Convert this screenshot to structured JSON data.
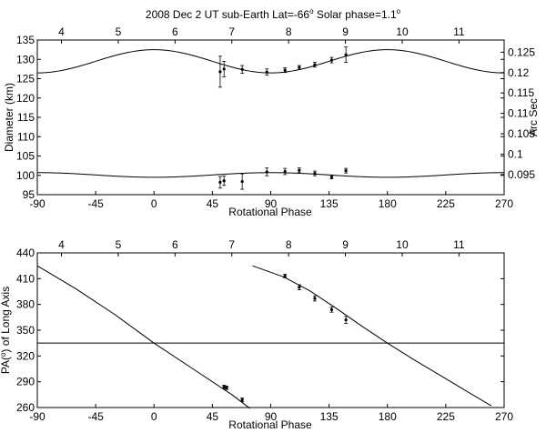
{
  "chart_data": [
    {
      "type": "scatter",
      "title": "2008 Dec 2 UT  sub-Earth Lat=-66",
      "title_sup1": "o",
      "title_rest": "  Solar phase=1.1",
      "title_sup2": "o",
      "xlabel": "Rotational Phase",
      "ylabel": "Diameter (km)",
      "y2label": "Arc Sec",
      "xlim": [
        -90,
        270
      ],
      "ylim": [
        95,
        135
      ],
      "xticks": [
        -90,
        -45,
        0,
        45,
        90,
        135,
        180,
        225,
        270
      ],
      "yticks": [
        95,
        100,
        105,
        110,
        115,
        120,
        125,
        130,
        135
      ],
      "y2ticks": [
        0.095,
        0.1,
        0.105,
        0.11,
        0.115,
        0.12,
        0.125
      ],
      "y2_scale_km_per_arcsec": 1054.8,
      "top_axis": {
        "label_values": [
          4,
          5,
          6,
          7,
          8,
          9,
          10,
          11
        ],
        "period_hours": 8.22,
        "zero_phase_hour": 5.63
      },
      "series": [
        {
          "model": "cosine",
          "mean": 129.5,
          "amplitude": 3.0,
          "period_deg": 180,
          "peak_deg": 0,
          "points": [
            {
              "x": 51,
              "y": 126.8,
              "err": 4.0
            },
            {
              "x": 54,
              "y": 127.5,
              "err": 2.0
            },
            {
              "x": 68,
              "y": 127.4,
              "err": 1.0
            },
            {
              "x": 87,
              "y": 126.7,
              "err": 0.8
            },
            {
              "x": 101,
              "y": 127.2,
              "err": 0.6
            },
            {
              "x": 112,
              "y": 127.9,
              "err": 0.5
            },
            {
              "x": 124,
              "y": 128.6,
              "err": 0.6
            },
            {
              "x": 137,
              "y": 129.8,
              "err": 0.7
            },
            {
              "x": 148,
              "y": 131.2,
              "err": 2.0
            }
          ]
        },
        {
          "model": "cosine",
          "mean": 100.1,
          "amplitude": 0.6,
          "period_deg": 180,
          "peak_deg": 90,
          "points": [
            {
              "x": 51,
              "y": 98.2,
              "err": 1.5
            },
            {
              "x": 54,
              "y": 98.6,
              "err": 1.2
            },
            {
              "x": 68,
              "y": 98.4,
              "err": 2.0
            },
            {
              "x": 87,
              "y": 100.9,
              "err": 1.0
            },
            {
              "x": 101,
              "y": 101.0,
              "err": 0.8
            },
            {
              "x": 112,
              "y": 101.3,
              "err": 0.6
            },
            {
              "x": 124,
              "y": 100.5,
              "err": 0.6
            },
            {
              "x": 137,
              "y": 99.6,
              "err": 0.5
            },
            {
              "x": 148,
              "y": 101.2,
              "err": 0.6
            }
          ]
        }
      ]
    },
    {
      "type": "scatter",
      "title": "",
      "xlabel": "Rotational Phase",
      "ylabel": "PA(",
      "ylabel_sup": "o",
      "ylabel_rest": ") of Long Axis",
      "xlim": [
        -90,
        270
      ],
      "ylim": [
        260,
        440
      ],
      "xticks": [
        -90,
        -45,
        0,
        45,
        90,
        135,
        180,
        225,
        270
      ],
      "yticks": [
        260,
        290,
        320,
        350,
        380,
        410,
        440
      ],
      "top_axis": {
        "label_values": [
          4,
          5,
          6,
          7,
          8,
          9,
          10,
          11
        ],
        "period_hours": 8.22,
        "zero_phase_hour": 5.63
      },
      "reference_line": 335,
      "curves": [
        {
          "x": [
            -90,
            -60,
            -30,
            0,
            30,
            60,
            74
          ],
          "y": [
            425,
            398,
            368,
            335,
            305,
            275,
            259
          ]
        },
        {
          "x": [
            76,
            100,
            120,
            140,
            160,
            180,
            200,
            230,
            260
          ],
          "y": [
            425,
            412,
            396,
            376,
            355,
            335,
            316,
            289,
            262
          ]
        }
      ],
      "points": [
        {
          "x": 54,
          "y": 284,
          "err": 2
        },
        {
          "x": 56,
          "y": 283,
          "err": 2
        },
        {
          "x": 68,
          "y": 269,
          "err": 2
        },
        {
          "x": 101,
          "y": 413,
          "err": 2
        },
        {
          "x": 112,
          "y": 400,
          "err": 3
        },
        {
          "x": 124,
          "y": 387,
          "err": 3
        },
        {
          "x": 137,
          "y": 374,
          "err": 3
        },
        {
          "x": 148,
          "y": 362,
          "err": 4
        }
      ]
    }
  ]
}
